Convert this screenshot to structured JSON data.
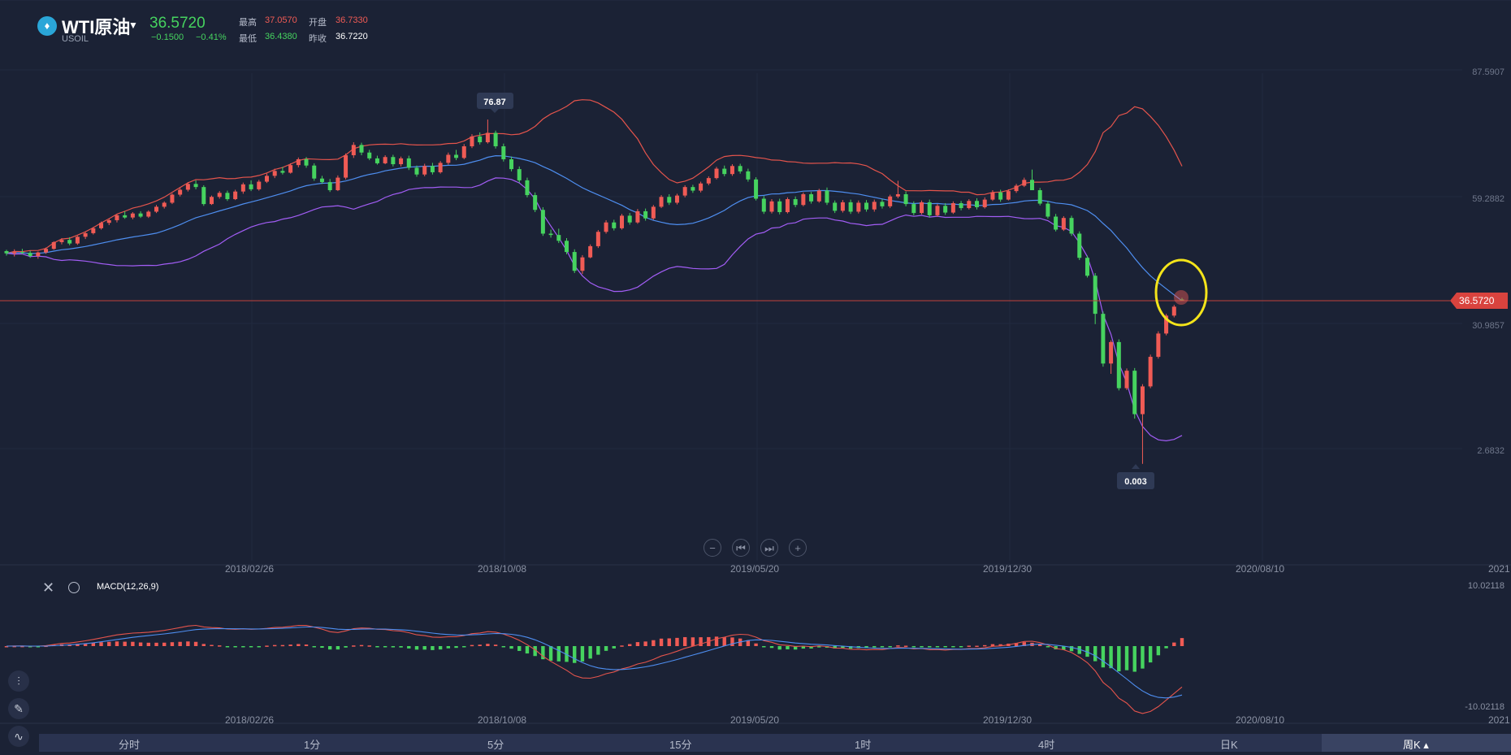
{
  "header": {
    "logo_glyph": "♦",
    "symbol": "WTI原油",
    "sub_symbol": "USOIL",
    "price": "36.5720",
    "change": "−0.1500",
    "change_pct": "−0.41%",
    "high_label": "最高",
    "high_value": "37.0570",
    "open_label": "开盘",
    "open_value": "36.7330",
    "low_label": "最低",
    "low_value": "36.4380",
    "prev_close_label": "昨收",
    "prev_close_value": "36.7220"
  },
  "colors": {
    "up": "#f05b55",
    "down": "#46d35f",
    "background": "#1b2235",
    "middle_band": "#4e8ef0",
    "lower_band": "#a25df5",
    "upper_band": "#e4544c",
    "highlight_circle": "#f4e41a"
  },
  "controls": {
    "zoom_out_icon": "minus-icon",
    "prev_icon": "skip-back-icon",
    "next_icon": "skip-forward-icon",
    "zoom_in_icon": "plus-icon"
  },
  "macd": {
    "title": "MACD(12,26,9)",
    "close_icon": "close-icon",
    "settings_icon": "gear-icon"
  },
  "side_tools": [
    "indicator-icon",
    "pencil-icon",
    "chart-icon"
  ],
  "periods": [
    "分时",
    "1分",
    "5分",
    "15分",
    "1时",
    "4时",
    "日K",
    "周K ▴"
  ],
  "active_period": "周K ▴",
  "chart_data": [
    {
      "type": "candlestick",
      "title": "",
      "price_axis_labels": [
        "87.5907",
        "59.2882",
        "30.9857",
        "2.6832"
      ],
      "current_price_label": "36.5720",
      "max_marker": "76.87",
      "min_marker": "0.003",
      "x_tick_labels": [
        "2018/02/26",
        "2018/10/08",
        "2019/05/20",
        "2019/12/30",
        "2020/08/10",
        "2021"
      ],
      "ohlc_approx": [
        [
          47.5,
          47.8,
          46.5,
          47.0
        ],
        [
          47.0,
          47.9,
          46.3,
          47.3
        ],
        [
          47.3,
          48.0,
          46.8,
          47.1
        ],
        [
          47.1,
          47.6,
          46.0,
          46.4
        ],
        [
          46.4,
          47.4,
          45.8,
          47.2
        ],
        [
          47.2,
          48.3,
          46.9,
          48.0
        ],
        [
          48.0,
          49.7,
          47.8,
          49.5
        ],
        [
          49.5,
          50.4,
          49.0,
          50.0
        ],
        [
          50.0,
          50.6,
          48.8,
          49.2
        ],
        [
          49.2,
          50.9,
          48.9,
          50.7
        ],
        [
          50.7,
          51.8,
          50.2,
          51.5
        ],
        [
          51.5,
          52.9,
          51.2,
          52.6
        ],
        [
          52.6,
          54.1,
          52.3,
          53.8
        ],
        [
          53.8,
          54.8,
          53.3,
          54.4
        ],
        [
          54.4,
          55.8,
          53.9,
          55.5
        ],
        [
          55.5,
          56.4,
          54.7,
          55.0
        ],
        [
          55.0,
          56.2,
          54.6,
          55.9
        ],
        [
          55.9,
          56.4,
          54.9,
          55.2
        ],
        [
          55.2,
          56.6,
          54.9,
          56.3
        ],
        [
          56.3,
          57.8,
          56.0,
          57.4
        ],
        [
          57.4,
          58.6,
          57.0,
          58.3
        ],
        [
          58.3,
          60.4,
          58.0,
          60.1
        ],
        [
          60.1,
          61.6,
          59.7,
          61.2
        ],
        [
          61.2,
          62.9,
          60.8,
          62.5
        ],
        [
          62.5,
          63.3,
          61.3,
          61.8
        ],
        [
          61.8,
          62.2,
          57.6,
          58.0
        ],
        [
          58.0,
          59.9,
          57.8,
          59.6
        ],
        [
          59.6,
          60.9,
          59.2,
          60.5
        ],
        [
          60.5,
          61.0,
          58.7,
          59.1
        ],
        [
          59.1,
          61.2,
          58.9,
          60.8
        ],
        [
          60.8,
          62.8,
          60.3,
          62.4
        ],
        [
          62.4,
          63.3,
          60.9,
          61.3
        ],
        [
          61.3,
          63.4,
          61.0,
          63.0
        ],
        [
          63.0,
          64.8,
          62.7,
          64.3
        ],
        [
          64.3,
          65.9,
          63.8,
          65.4
        ],
        [
          65.4,
          66.3,
          64.6,
          65.0
        ],
        [
          65.0,
          67.1,
          64.8,
          66.7
        ],
        [
          66.7,
          68.4,
          66.2,
          68.0
        ],
        [
          68.0,
          68.5,
          66.1,
          66.6
        ],
        [
          66.6,
          67.1,
          63.2,
          63.7
        ],
        [
          63.7,
          64.3,
          62.5,
          62.9
        ],
        [
          62.9,
          63.6,
          60.7,
          61.1
        ],
        [
          61.1,
          64.4,
          60.9,
          63.9
        ],
        [
          63.9,
          69.3,
          63.5,
          68.9
        ],
        [
          68.9,
          71.8,
          68.3,
          71.2
        ],
        [
          71.2,
          71.7,
          68.9,
          69.5
        ],
        [
          69.5,
          70.1,
          67.8,
          68.2
        ],
        [
          68.2,
          68.8,
          66.8,
          67.1
        ],
        [
          67.1,
          68.9,
          66.9,
          68.5
        ],
        [
          68.5,
          69.0,
          66.4,
          66.9
        ],
        [
          66.9,
          68.6,
          66.4,
          68.2
        ],
        [
          68.2,
          68.8,
          65.6,
          66.1
        ],
        [
          66.1,
          66.6,
          64.1,
          64.6
        ],
        [
          64.6,
          67.0,
          64.2,
          66.5
        ],
        [
          66.5,
          67.2,
          64.6,
          65.1
        ],
        [
          65.1,
          67.6,
          64.8,
          67.2
        ],
        [
          67.2,
          69.5,
          66.8,
          69.0
        ],
        [
          69.0,
          70.1,
          67.8,
          68.3
        ],
        [
          68.3,
          71.4,
          68.0,
          70.9
        ],
        [
          70.9,
          73.6,
          70.5,
          73.1
        ],
        [
          73.1,
          74.0,
          71.3,
          71.8
        ],
        [
          71.8,
          76.87,
          71.5,
          73.9
        ],
        [
          73.9,
          74.4,
          70.4,
          70.9
        ],
        [
          70.9,
          71.5,
          67.5,
          68.0
        ],
        [
          68.0,
          68.6,
          65.3,
          65.8
        ],
        [
          65.8,
          66.4,
          62.8,
          63.3
        ],
        [
          63.3,
          63.9,
          59.5,
          60.0
        ],
        [
          60.0,
          60.6,
          56.2,
          56.7
        ],
        [
          56.7,
          57.3,
          50.9,
          51.4
        ],
        [
          51.4,
          52.3,
          50.5,
          51.1
        ],
        [
          51.1,
          52.5,
          49.3,
          49.8
        ],
        [
          49.8,
          50.4,
          46.8,
          47.3
        ],
        [
          47.3,
          47.9,
          42.6,
          43.1
        ],
        [
          43.1,
          46.6,
          42.4,
          46.1
        ],
        [
          46.1,
          49.0,
          45.9,
          48.6
        ],
        [
          48.6,
          52.2,
          48.2,
          51.8
        ],
        [
          51.8,
          54.4,
          51.4,
          53.9
        ],
        [
          53.9,
          54.5,
          52.1,
          52.6
        ],
        [
          52.6,
          55.8,
          52.3,
          55.4
        ],
        [
          55.4,
          56.0,
          53.4,
          53.9
        ],
        [
          53.9,
          56.9,
          53.6,
          56.4
        ],
        [
          56.4,
          57.0,
          54.3,
          54.8
        ],
        [
          54.8,
          57.8,
          54.5,
          57.4
        ],
        [
          57.4,
          60.0,
          57.1,
          59.6
        ],
        [
          59.6,
          60.2,
          57.8,
          58.3
        ],
        [
          58.3,
          60.3,
          57.9,
          59.9
        ],
        [
          59.9,
          62.2,
          59.5,
          61.8
        ],
        [
          61.8,
          62.3,
          60.5,
          61.0
        ],
        [
          61.0,
          63.0,
          60.6,
          62.6
        ],
        [
          62.6,
          64.2,
          62.2,
          63.8
        ],
        [
          63.8,
          66.3,
          63.5,
          65.9
        ],
        [
          65.9,
          66.6,
          64.2,
          64.7
        ],
        [
          64.7,
          66.9,
          64.3,
          66.5
        ],
        [
          66.5,
          67.0,
          64.8,
          65.3
        ],
        [
          65.3,
          65.9,
          63.0,
          63.5
        ],
        [
          63.5,
          64.0,
          58.8,
          59.2
        ],
        [
          59.2,
          59.8,
          55.8,
          56.3
        ],
        [
          56.3,
          59.1,
          55.9,
          58.6
        ],
        [
          58.6,
          59.2,
          55.7,
          56.2
        ],
        [
          56.2,
          59.5,
          55.9,
          59.1
        ],
        [
          59.1,
          59.7,
          57.3,
          57.8
        ],
        [
          57.8,
          60.6,
          57.5,
          60.2
        ],
        [
          60.2,
          60.7,
          58.1,
          58.6
        ],
        [
          58.6,
          61.4,
          58.3,
          61.0
        ],
        [
          61.0,
          61.7,
          57.8,
          58.3
        ],
        [
          58.3,
          58.8,
          56.0,
          56.5
        ],
        [
          56.5,
          58.9,
          56.1,
          58.4
        ],
        [
          58.4,
          59.0,
          55.8,
          56.3
        ],
        [
          56.3,
          58.8,
          55.9,
          58.3
        ],
        [
          58.3,
          58.9,
          56.3,
          56.8
        ],
        [
          56.8,
          59.0,
          56.3,
          58.5
        ],
        [
          58.5,
          59.1,
          57.0,
          57.5
        ],
        [
          57.5,
          60.1,
          57.1,
          59.7
        ],
        [
          59.7,
          63.2,
          59.3,
          60.2
        ],
        [
          60.2,
          60.8,
          57.5,
          58.0
        ],
        [
          58.0,
          58.6,
          55.5,
          56.0
        ],
        [
          56.0,
          58.8,
          55.7,
          58.4
        ],
        [
          58.4,
          59.0,
          55.0,
          55.5
        ],
        [
          55.5,
          58.0,
          55.2,
          57.6
        ],
        [
          57.6,
          58.2,
          55.6,
          56.1
        ],
        [
          56.1,
          58.6,
          55.8,
          58.2
        ],
        [
          58.2,
          58.7,
          56.6,
          57.1
        ],
        [
          57.1,
          59.1,
          56.8,
          58.7
        ],
        [
          58.7,
          59.3,
          56.8,
          57.3
        ],
        [
          57.3,
          59.5,
          57.0,
          59.0
        ],
        [
          59.0,
          61.1,
          58.7,
          60.6
        ],
        [
          60.6,
          61.2,
          58.5,
          59.0
        ],
        [
          59.0,
          61.3,
          58.8,
          60.9
        ],
        [
          60.9,
          62.5,
          60.5,
          62.1
        ],
        [
          62.1,
          63.9,
          61.8,
          63.4
        ],
        [
          63.4,
          65.7,
          63.0,
          61.1
        ],
        [
          61.1,
          61.6,
          57.7,
          58.1
        ],
        [
          58.1,
          58.7,
          54.8,
          55.2
        ],
        [
          55.2,
          55.8,
          51.9,
          52.3
        ],
        [
          52.3,
          55.3,
          52.0,
          54.9
        ],
        [
          54.9,
          55.4,
          50.9,
          51.4
        ],
        [
          51.4,
          51.9,
          45.5,
          46.0
        ],
        [
          46.0,
          46.5,
          41.6,
          42.0
        ],
        [
          42.0,
          42.6,
          31.2,
          33.5
        ],
        [
          33.5,
          34.0,
          21.7,
          22.4
        ],
        [
          22.4,
          27.6,
          20.1,
          27.2
        ],
        [
          27.2,
          27.8,
          16.4,
          16.9
        ],
        [
          16.9,
          21.3,
          16.5,
          20.8
        ],
        [
          20.8,
          21.4,
          10.1,
          11.1
        ],
        [
          11.1,
          17.8,
          0.003,
          17.3
        ],
        [
          17.3,
          24.4,
          16.9,
          23.9
        ],
        [
          23.9,
          29.6,
          23.5,
          29.1
        ],
        [
          29.1,
          33.5,
          28.7,
          33.1
        ],
        [
          33.1,
          35.5,
          32.7,
          35.1
        ],
        [
          36.7,
          37.06,
          36.44,
          36.57
        ]
      ]
    },
    {
      "type": "bar",
      "title": "MACD(12,26,9)",
      "ylim": [
        -10.02118,
        10.02118
      ],
      "y_tick_labels": [
        "10.02118",
        "-10.02118"
      ],
      "x_tick_labels": [
        "2018/02/26",
        "2018/10/08",
        "2019/05/20",
        "2019/12/30",
        "2020/08/10",
        "2021"
      ]
    }
  ]
}
